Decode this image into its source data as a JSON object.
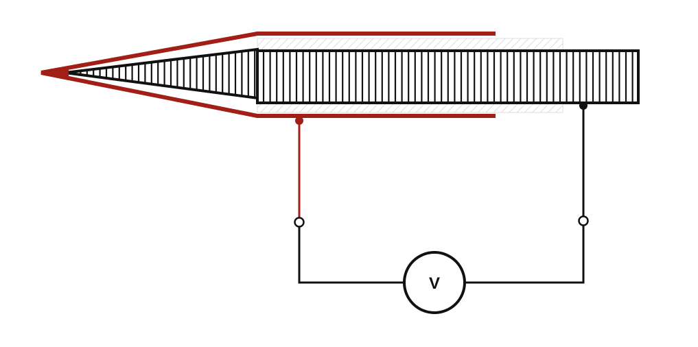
{
  "diagram": {
    "voltmeter": {
      "label": "V"
    },
    "colors": {
      "background": "#ffffff",
      "electrode_red": "#a11f16",
      "wire_black": "#111111",
      "hatch_gray": "#c9c9c9",
      "hatch_light": "#dedede",
      "terminal_fill": "#ffffff"
    }
  }
}
